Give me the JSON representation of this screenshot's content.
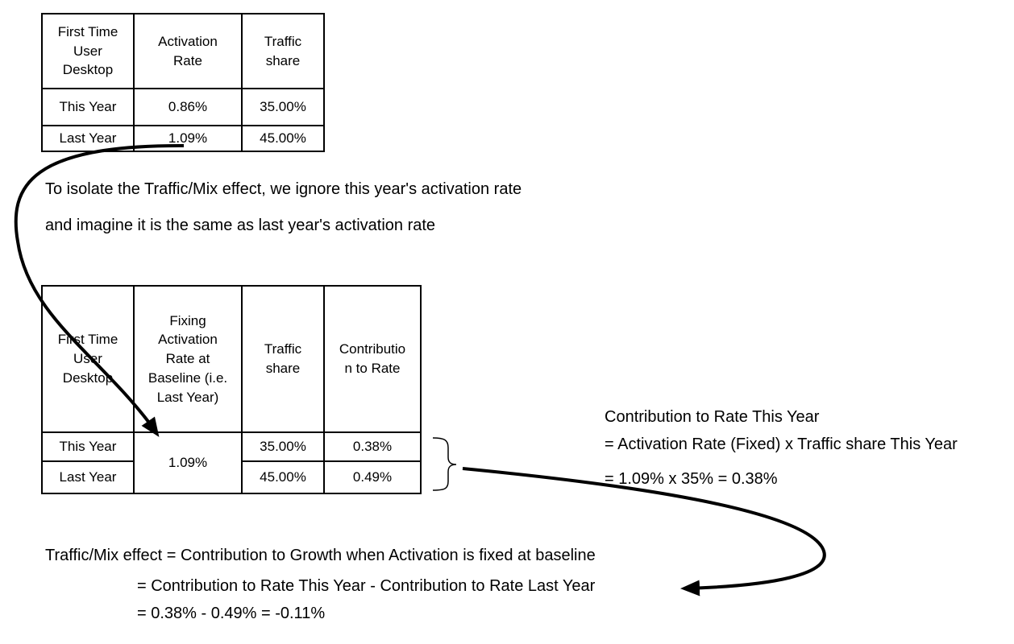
{
  "table1": {
    "headers": [
      "First Time\nUser\nDesktop",
      "Activation\nRate",
      "Traffic\nshare"
    ],
    "rows": [
      [
        "This Year",
        "0.86%",
        "35.00%"
      ],
      [
        "Last Year",
        "1.09%",
        "45.00%"
      ]
    ]
  },
  "explanation": {
    "line1": "To isolate the Traffic/Mix effect, we ignore this year's activation rate",
    "line2": "and imagine it is the same as last year's activation rate"
  },
  "table2": {
    "headers": [
      "First Time\nUser\nDesktop",
      "Fixing\nActivation\nRate at\nBaseline (i.e.\nLast Year)",
      "Traffic\nshare",
      "Contributio\nn to Rate"
    ],
    "fixed_rate": "1.09%",
    "rows": [
      {
        "label": "This Year",
        "traffic": "35.00%",
        "contribution": "0.38%"
      },
      {
        "label": "Last Year",
        "traffic": "45.00%",
        "contribution": "0.49%"
      }
    ]
  },
  "side_note": {
    "line1": "Contribution to Rate This Year",
    "line2": "= Activation Rate (Fixed) x Traffic share This Year",
    "line3": "= 1.09% x 35% = 0.38%"
  },
  "bottom_note": {
    "line1": "Traffic/Mix effect = Contribution to Growth when Activation is fixed at baseline",
    "line2": "= Contribution to Rate This Year - Contribution to Rate Last Year",
    "line3": "= 0.38% - 0.49% = -0.11%"
  }
}
